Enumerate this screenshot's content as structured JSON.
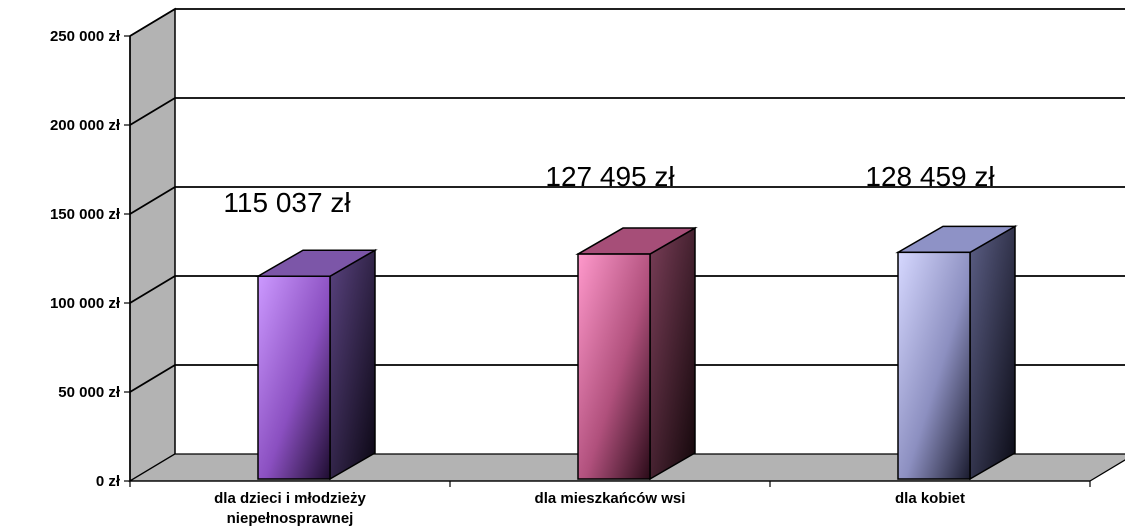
{
  "chart_data": {
    "type": "bar",
    "title": "",
    "xlabel": "",
    "ylabel": "",
    "ylim": [
      0,
      250000
    ],
    "grid": true,
    "legend": "none",
    "yticks": [
      "0 zł",
      "50 000 zł",
      "100 000 zł",
      "150 000 zł",
      "200 000 zł",
      "250 000 zł"
    ],
    "categories": [
      {
        "line1": "dla dzieci i młodzieży",
        "line2": "niepełnosprawnej"
      },
      {
        "line1": "dla mieszkańców wsi",
        "line2": ""
      },
      {
        "line1": "dla kobiet",
        "line2": ""
      }
    ],
    "values": [
      115037,
      127495,
      128459
    ],
    "data_labels": [
      "115 037 zł",
      "127 495 zł",
      "128 459 zł"
    ],
    "colors": [
      {
        "front": "#c690f4",
        "side": "#3a2c52",
        "top": "#7c56a8"
      },
      {
        "front": "#f58cbe",
        "side": "#5e2e40",
        "top": "#a64e78"
      },
      {
        "front": "#c8cbf6",
        "side": "#3c3f5e",
        "top": "#8e92c6"
      }
    ]
  }
}
